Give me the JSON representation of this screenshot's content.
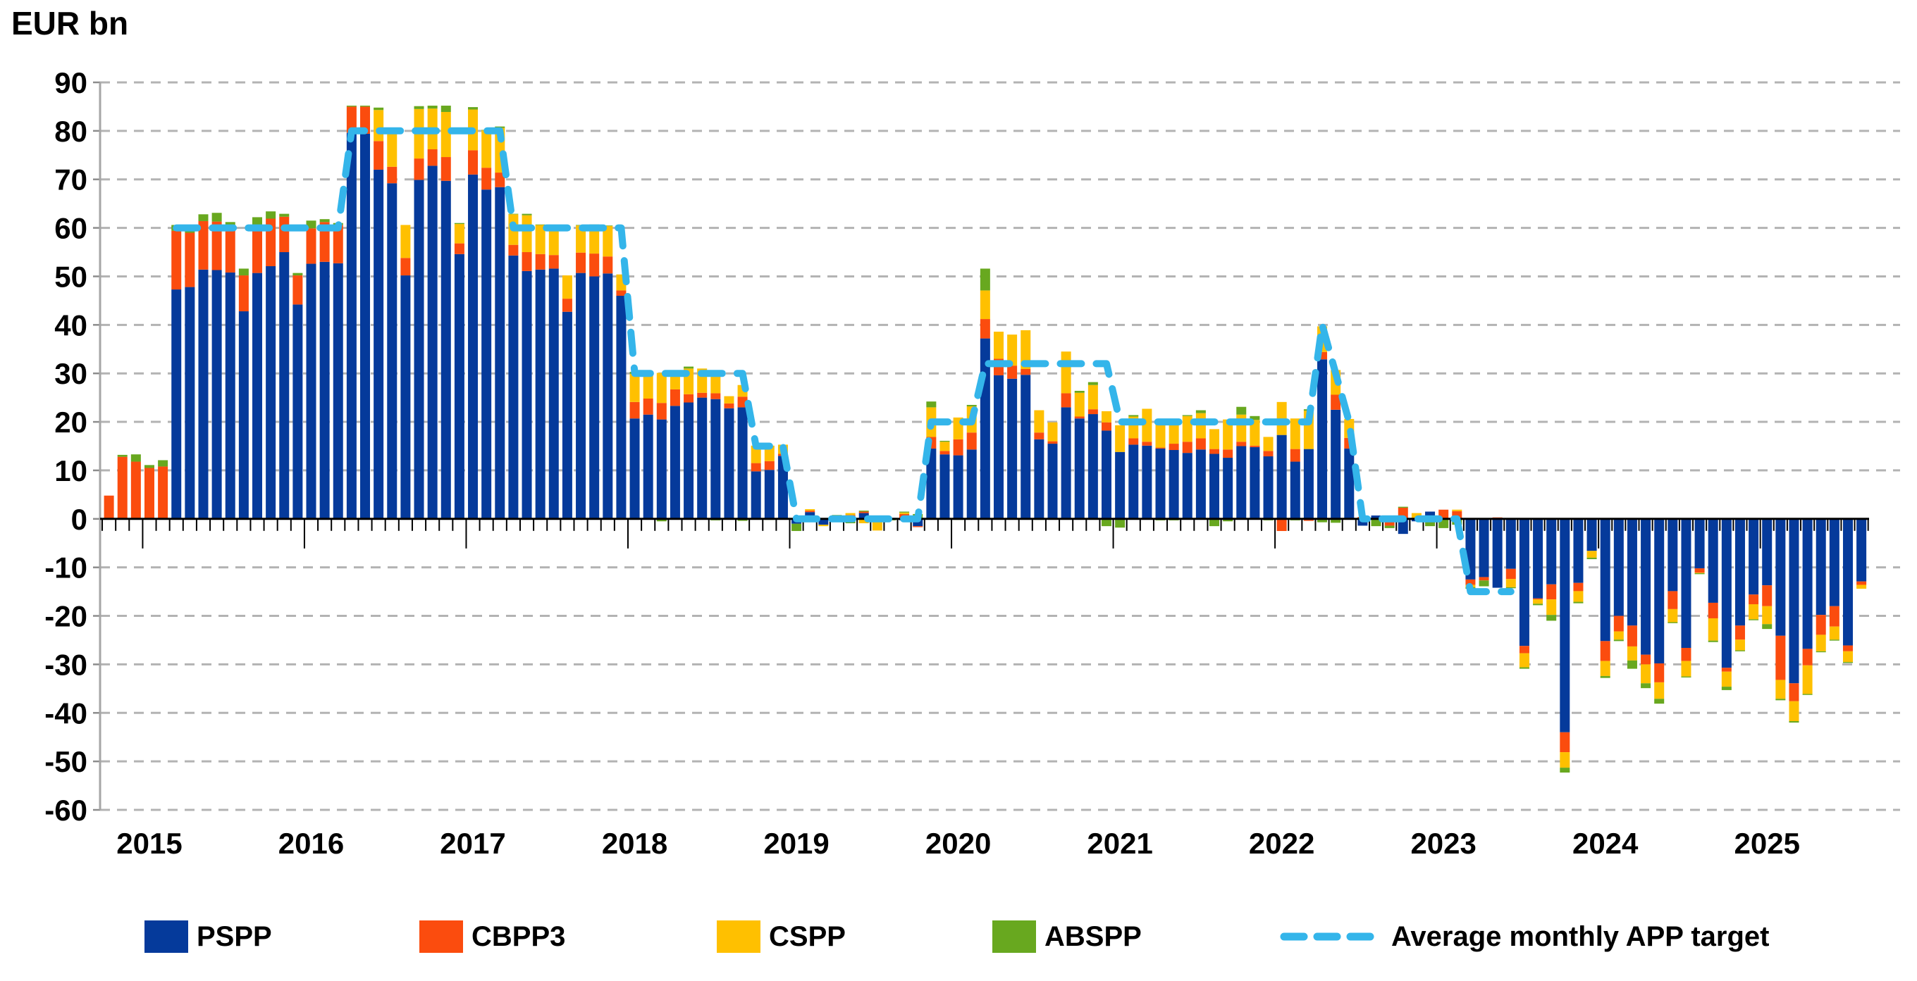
{
  "title": "EUR bn",
  "y_axis": {
    "ticks": [
      90,
      80,
      70,
      60,
      50,
      40,
      30,
      20,
      10,
      0,
      -10,
      -20,
      -30,
      -40,
      -50,
      -60
    ]
  },
  "x_axis": {
    "years": [
      "2015",
      "2016",
      "2017",
      "2018",
      "2019",
      "2020",
      "2021",
      "2022",
      "2023",
      "2024",
      "2025"
    ]
  },
  "legend": {
    "items": [
      {
        "label": "PSPP",
        "color": "#053a9b",
        "type": "square"
      },
      {
        "label": "CBPP3",
        "color": "#fb4c0e",
        "type": "square"
      },
      {
        "label": "CSPP",
        "color": "#ffc000",
        "type": "square"
      },
      {
        "label": "ABSPP",
        "color": "#68a81f",
        "type": "square"
      },
      {
        "label": "Average monthly APP target",
        "color": "#34b5ea",
        "type": "dashed-line"
      }
    ]
  },
  "chart_data": {
    "type": "bar",
    "subtype": "stacked-monthly-bars-with-dashed-target-line",
    "title": "EUR bn",
    "xlabel": "",
    "ylabel": "EUR bn",
    "ylim": [
      -60,
      90
    ],
    "grid": "horizontal-dashed",
    "legend_position": "bottom",
    "months": [
      "2014-10",
      "2014-11",
      "2014-12",
      "2015-01",
      "2015-02",
      "2015-03",
      "2015-04",
      "2015-05",
      "2015-06",
      "2015-07",
      "2015-08",
      "2015-09",
      "2015-10",
      "2015-11",
      "2015-12",
      "2016-01",
      "2016-02",
      "2016-03",
      "2016-04",
      "2016-05",
      "2016-06",
      "2016-07",
      "2016-08",
      "2016-09",
      "2016-10",
      "2016-11",
      "2016-12",
      "2017-01",
      "2017-02",
      "2017-03",
      "2017-04",
      "2017-05",
      "2017-06",
      "2017-07",
      "2017-08",
      "2017-09",
      "2017-10",
      "2017-11",
      "2017-12",
      "2018-01",
      "2018-02",
      "2018-03",
      "2018-04",
      "2018-05",
      "2018-06",
      "2018-07",
      "2018-08",
      "2018-09",
      "2018-10",
      "2018-11",
      "2018-12",
      "2019-01",
      "2019-02",
      "2019-03",
      "2019-04",
      "2019-05",
      "2019-06",
      "2019-07",
      "2019-08",
      "2019-09",
      "2019-10",
      "2019-11",
      "2019-12",
      "2020-01",
      "2020-02",
      "2020-03",
      "2020-04",
      "2020-05",
      "2020-06",
      "2020-07",
      "2020-08",
      "2020-09",
      "2020-10",
      "2020-11",
      "2020-12",
      "2021-01",
      "2021-02",
      "2021-03",
      "2021-04",
      "2021-05",
      "2021-06",
      "2021-07",
      "2021-08",
      "2021-09",
      "2021-10",
      "2021-11",
      "2021-12",
      "2022-01",
      "2022-02",
      "2022-03",
      "2022-04",
      "2022-05",
      "2022-06",
      "2022-07",
      "2022-08",
      "2022-09",
      "2022-10",
      "2022-11",
      "2022-12",
      "2023-01",
      "2023-02",
      "2023-03",
      "2023-04",
      "2023-05",
      "2023-06",
      "2023-07",
      "2023-08",
      "2023-09",
      "2023-10",
      "2023-11",
      "2023-12",
      "2024-01",
      "2024-02",
      "2024-03",
      "2024-04",
      "2024-05",
      "2024-06",
      "2024-07",
      "2024-08",
      "2024-09",
      "2024-10",
      "2024-11",
      "2024-12",
      "2025-01",
      "2025-02",
      "2025-03",
      "2025-04",
      "2025-05",
      "2025-06",
      "2025-07",
      "2025-08"
    ],
    "series": [
      {
        "name": "PSPP",
        "color": "#053a9b",
        "values": [
          0,
          0,
          0,
          0,
          0,
          47.3,
          47.8,
          51.4,
          51.3,
          50.8,
          42.8,
          50.7,
          52.1,
          55.0,
          44.2,
          52.6,
          53.0,
          52.7,
          79.6,
          79.4,
          72.0,
          69.2,
          50.2,
          69.9,
          72.8,
          69.7,
          54.6,
          71.0,
          67.9,
          68.4,
          54.3,
          51.1,
          51.4,
          51.6,
          42.7,
          50.7,
          50.0,
          50.6,
          46.0,
          20.7,
          21.5,
          20.5,
          23.3,
          24.0,
          25.0,
          24.7,
          22.8,
          23.0,
          9.8,
          10.1,
          13.0,
          -1.0,
          1.4,
          -1.2,
          0.3,
          0.4,
          1.2,
          -0.6,
          0.2,
          -0.3,
          -1.5,
          14.5,
          13.3,
          13.1,
          14.3,
          37.2,
          29.6,
          28.9,
          29.7,
          16.4,
          15.5,
          23.0,
          20.7,
          21.6,
          18.2,
          13.8,
          15.3,
          15.1,
          14.5,
          14.2,
          13.6,
          14.3,
          13.4,
          12.6,
          15.0,
          14.8,
          12.9,
          17.3,
          11.8,
          14.4,
          32.9,
          22.5,
          14.5,
          -1.4,
          0.7,
          0,
          -3.1,
          -0.5,
          1.5,
          0,
          0,
          -12.5,
          -12.0,
          -14.2,
          -10.3,
          -26.2,
          -16.4,
          -13.5,
          -44.0,
          -13.2,
          -6.6,
          -25.2,
          -20.0,
          -22.0,
          -28.0,
          -29.8,
          -14.9,
          -26.6,
          -10.2,
          -17.3,
          -30.7,
          -22.0,
          -15.6,
          -13.7,
          -24.1,
          -33.9,
          -26.8,
          -19.8,
          -18.0,
          -26.1,
          -12.9
        ]
      },
      {
        "name": "CBPP3",
        "color": "#fb4c0e",
        "values": [
          4.8,
          12.8,
          11.8,
          10.5,
          10.8,
          12.1,
          11.2,
          10.0,
          10.0,
          9.6,
          7.4,
          9.7,
          9.8,
          7.3,
          6.0,
          7.3,
          8.2,
          7.9,
          5.4,
          5.6,
          5.9,
          3.4,
          3.6,
          4.4,
          3.4,
          4.9,
          2.2,
          5.0,
          4.5,
          3.0,
          2.2,
          3.9,
          3.2,
          2.8,
          2.7,
          4.2,
          4.7,
          3.5,
          1.1,
          3.4,
          3.3,
          3.4,
          3.4,
          1.7,
          1.0,
          1.2,
          1.0,
          2.2,
          1.7,
          1.8,
          0.4,
          0,
          0.3,
          0,
          0,
          0.4,
          0.3,
          0.5,
          0,
          1.0,
          -0.2,
          2.4,
          0.7,
          3.3,
          3.5,
          4.0,
          3.4,
          2.7,
          1.2,
          1.4,
          0.5,
          2.9,
          0.4,
          1.0,
          1.7,
          0,
          1.3,
          0.8,
          0.2,
          1.3,
          2.3,
          2.3,
          1.0,
          1.7,
          0.9,
          0.3,
          1.1,
          -2.5,
          2.6,
          -0.4,
          1.5,
          3.1,
          2.2,
          0.4,
          0,
          -1.4,
          2.3,
          0,
          0,
          1.9,
          1.6,
          -1.1,
          -0.7,
          0.3,
          -2.1,
          -1.5,
          -0.2,
          -3.1,
          -4.1,
          -1.7,
          0,
          -4.1,
          -3.2,
          -4.3,
          -2.0,
          -3.9,
          -3.7,
          -2.7,
          -0.9,
          -3.2,
          -0.8,
          -2.9,
          -2.0,
          -4.3,
          -9.1,
          -3.7,
          -3.4,
          -4.1,
          -4.2,
          -1.2,
          -0.7
        ]
      },
      {
        "name": "CSPP",
        "color": "#ffc000",
        "values": [
          0,
          0,
          0,
          0,
          0,
          0,
          0,
          0,
          0,
          0,
          0,
          0,
          0,
          0,
          0,
          0,
          0,
          0,
          0,
          0,
          6.4,
          7.5,
          6.8,
          10.2,
          8.4,
          9.3,
          4.0,
          8.4,
          7.7,
          9.2,
          6.3,
          7.6,
          6.0,
          6.0,
          4.8,
          5.6,
          5.9,
          6.3,
          3.3,
          5.8,
          5.3,
          6.2,
          3.3,
          5.3,
          5.0,
          3.9,
          1.5,
          2.4,
          3.6,
          3.2,
          1.9,
          0,
          0.3,
          -0.3,
          -0.6,
          0.4,
          -0.9,
          -1.8,
          0,
          0.3,
          0,
          6.1,
          1.9,
          4.5,
          5.4,
          5.9,
          5.6,
          6.4,
          8.0,
          4.6,
          3.9,
          8.6,
          4.9,
          5.0,
          2.3,
          5.5,
          4.5,
          6.8,
          5.2,
          5.1,
          5.3,
          5.2,
          4.1,
          6.2,
          5.6,
          5.3,
          2.9,
          6.8,
          6.3,
          7.9,
          5.3,
          5.1,
          3.9,
          0,
          0,
          0,
          0,
          1.2,
          0,
          0,
          0.3,
          -0.5,
          0,
          0,
          -1.7,
          -2.9,
          -0.9,
          -3.2,
          -3.2,
          -2.2,
          -1.4,
          -3.1,
          -1.7,
          -2.9,
          -3.9,
          -3.4,
          -2.7,
          -3.2,
          -0.1,
          -4.6,
          -3.1,
          -2.2,
          -3.1,
          -3.7,
          -3.9,
          -4.1,
          -5.9,
          -3.4,
          -2.7,
          -2.2,
          -0.8
        ]
      },
      {
        "name": "ABSPP",
        "color": "#68a81f",
        "values": [
          0,
          0.4,
          1.5,
          0.6,
          1.3,
          1.2,
          1.3,
          1.4,
          1.8,
          0.8,
          1.4,
          1.8,
          1.5,
          0.6,
          0.5,
          1.6,
          0.6,
          0.4,
          0.2,
          0.2,
          0.5,
          0.4,
          0,
          0.6,
          0.6,
          1.3,
          0.2,
          0.5,
          0.1,
          0.3,
          0.1,
          0.3,
          0.1,
          0.1,
          0,
          0.1,
          0.1,
          0.1,
          0,
          0.4,
          0.1,
          -0.5,
          0.1,
          0.4,
          0,
          -0.3,
          0,
          -0.4,
          0,
          -0.2,
          0,
          -1.5,
          0,
          0,
          0.5,
          -0.9,
          0.2,
          0,
          -0.3,
          0.2,
          1.0,
          1.2,
          0.2,
          -0.2,
          0.3,
          4.5,
          0,
          0,
          -0.1,
          -0.2,
          -0.1,
          0,
          0.4,
          0.6,
          -1.5,
          -1.8,
          0.3,
          0,
          -0.3,
          -0.3,
          0.2,
          0.6,
          -1.5,
          -0.5,
          1.6,
          0.8,
          -0.3,
          0,
          -0.3,
          0.3,
          -0.7,
          -0.8,
          0,
          0,
          -1.5,
          -0.5,
          0.2,
          0,
          -1.5,
          -1.9,
          -1.2,
          -0.3,
          -1.2,
          0,
          -0.2,
          -0.3,
          -0.3,
          -1.2,
          -1.0,
          -0.3,
          -0.3,
          -0.4,
          -0.3,
          -1.7,
          -1.0,
          -1.0,
          -0.2,
          -0.2,
          -0.2,
          -0.3,
          -0.7,
          -0.2,
          -0.2,
          -1.0,
          -0.3,
          -0.3,
          -0.2,
          -0.2,
          -0.2,
          -0.2,
          0
        ]
      }
    ],
    "target": {
      "name": "Average monthly APP target",
      "color": "#34b5ea",
      "values": [
        null,
        null,
        null,
        null,
        null,
        60,
        60,
        60,
        60,
        60,
        60,
        60,
        60,
        60,
        60,
        60,
        60,
        60,
        80,
        80,
        80,
        80,
        80,
        80,
        80,
        80,
        80,
        80,
        80,
        80,
        60,
        60,
        60,
        60,
        60,
        60,
        60,
        60,
        60,
        30,
        30,
        30,
        30,
        30,
        30,
        30,
        30,
        30,
        15,
        15,
        15,
        0,
        0,
        0,
        0,
        0,
        0,
        0,
        0,
        0,
        0,
        20,
        20,
        20,
        20,
        32,
        32,
        32,
        32,
        32,
        32,
        32,
        32,
        32,
        32,
        20,
        20,
        20,
        20,
        20,
        20,
        20,
        20,
        20,
        20,
        20,
        20,
        20,
        20,
        20,
        40,
        30,
        20,
        0,
        0,
        0,
        0,
        0,
        0,
        0,
        0,
        -15,
        -15,
        -15,
        -15,
        null,
        null,
        null,
        null,
        null,
        null,
        null,
        null,
        null,
        null,
        null,
        null,
        null,
        null,
        null,
        null,
        null,
        null,
        null,
        null,
        null,
        null,
        null,
        null,
        null,
        null
      ]
    }
  }
}
